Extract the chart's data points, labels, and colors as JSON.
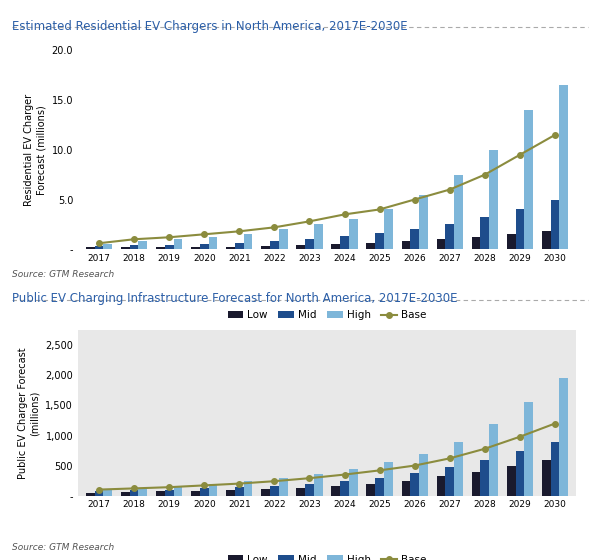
{
  "title1": "Estimated Residential EV Chargers in North America, 2017E-2030E",
  "title2": "Public EV Charging Infrastructure Forecast for North America, 2017E-2030E",
  "source": "Source: GTM Research",
  "years": [
    2017,
    2018,
    2019,
    2020,
    2021,
    2022,
    2023,
    2024,
    2025,
    2026,
    2027,
    2028,
    2029,
    2030
  ],
  "res_low": [
    0.2,
    0.2,
    0.2,
    0.2,
    0.2,
    0.3,
    0.4,
    0.5,
    0.6,
    0.8,
    1.0,
    1.2,
    1.5,
    1.8
  ],
  "res_mid": [
    0.3,
    0.4,
    0.4,
    0.5,
    0.6,
    0.8,
    1.0,
    1.3,
    1.6,
    2.0,
    2.5,
    3.2,
    4.0,
    5.0
  ],
  "res_high": [
    0.5,
    0.8,
    1.0,
    1.2,
    1.5,
    2.0,
    2.5,
    3.0,
    4.0,
    5.5,
    7.5,
    10.0,
    14.0,
    16.5
  ],
  "res_base": [
    0.6,
    1.0,
    1.2,
    1.5,
    1.8,
    2.2,
    2.8,
    3.5,
    4.0,
    5.0,
    6.0,
    7.5,
    9.5,
    11.5
  ],
  "pub_low": [
    50,
    60,
    70,
    80,
    90,
    110,
    130,
    160,
    200,
    250,
    320,
    400,
    500,
    600
  ],
  "pub_mid": [
    80,
    90,
    100,
    120,
    140,
    160,
    190,
    240,
    300,
    380,
    480,
    600,
    750,
    900
  ],
  "pub_high": [
    100,
    130,
    160,
    200,
    240,
    290,
    360,
    440,
    560,
    700,
    900,
    1200,
    1550,
    1950
  ],
  "pub_base": [
    100,
    120,
    140,
    170,
    200,
    240,
    290,
    350,
    420,
    500,
    620,
    780,
    980,
    1200
  ],
  "color_low": "#1a1a2e",
  "color_mid": "#1e4d8c",
  "color_high": "#7eb6d9",
  "color_base": "#8b8c3e",
  "color_bg": "#e8e8e8",
  "ylabel1": "Residential EV Charger\nForecast (millions)",
  "ylabel2": "Public EV Charger Forecast\n(millions)",
  "ylim1": [
    0,
    20
  ],
  "ylim2": [
    0,
    2750
  ],
  "yticks1": [
    0,
    5.0,
    10.0,
    15.0,
    20.0
  ],
  "ytick_labels1": [
    "-",
    "5.0",
    "10.0",
    "15.0",
    "20.0"
  ],
  "yticks2": [
    0,
    500,
    1000,
    1500,
    2000,
    2500
  ],
  "ytick_labels2": [
    "-",
    "500",
    "1,000",
    "1,500",
    "2,000",
    "2,500"
  ]
}
